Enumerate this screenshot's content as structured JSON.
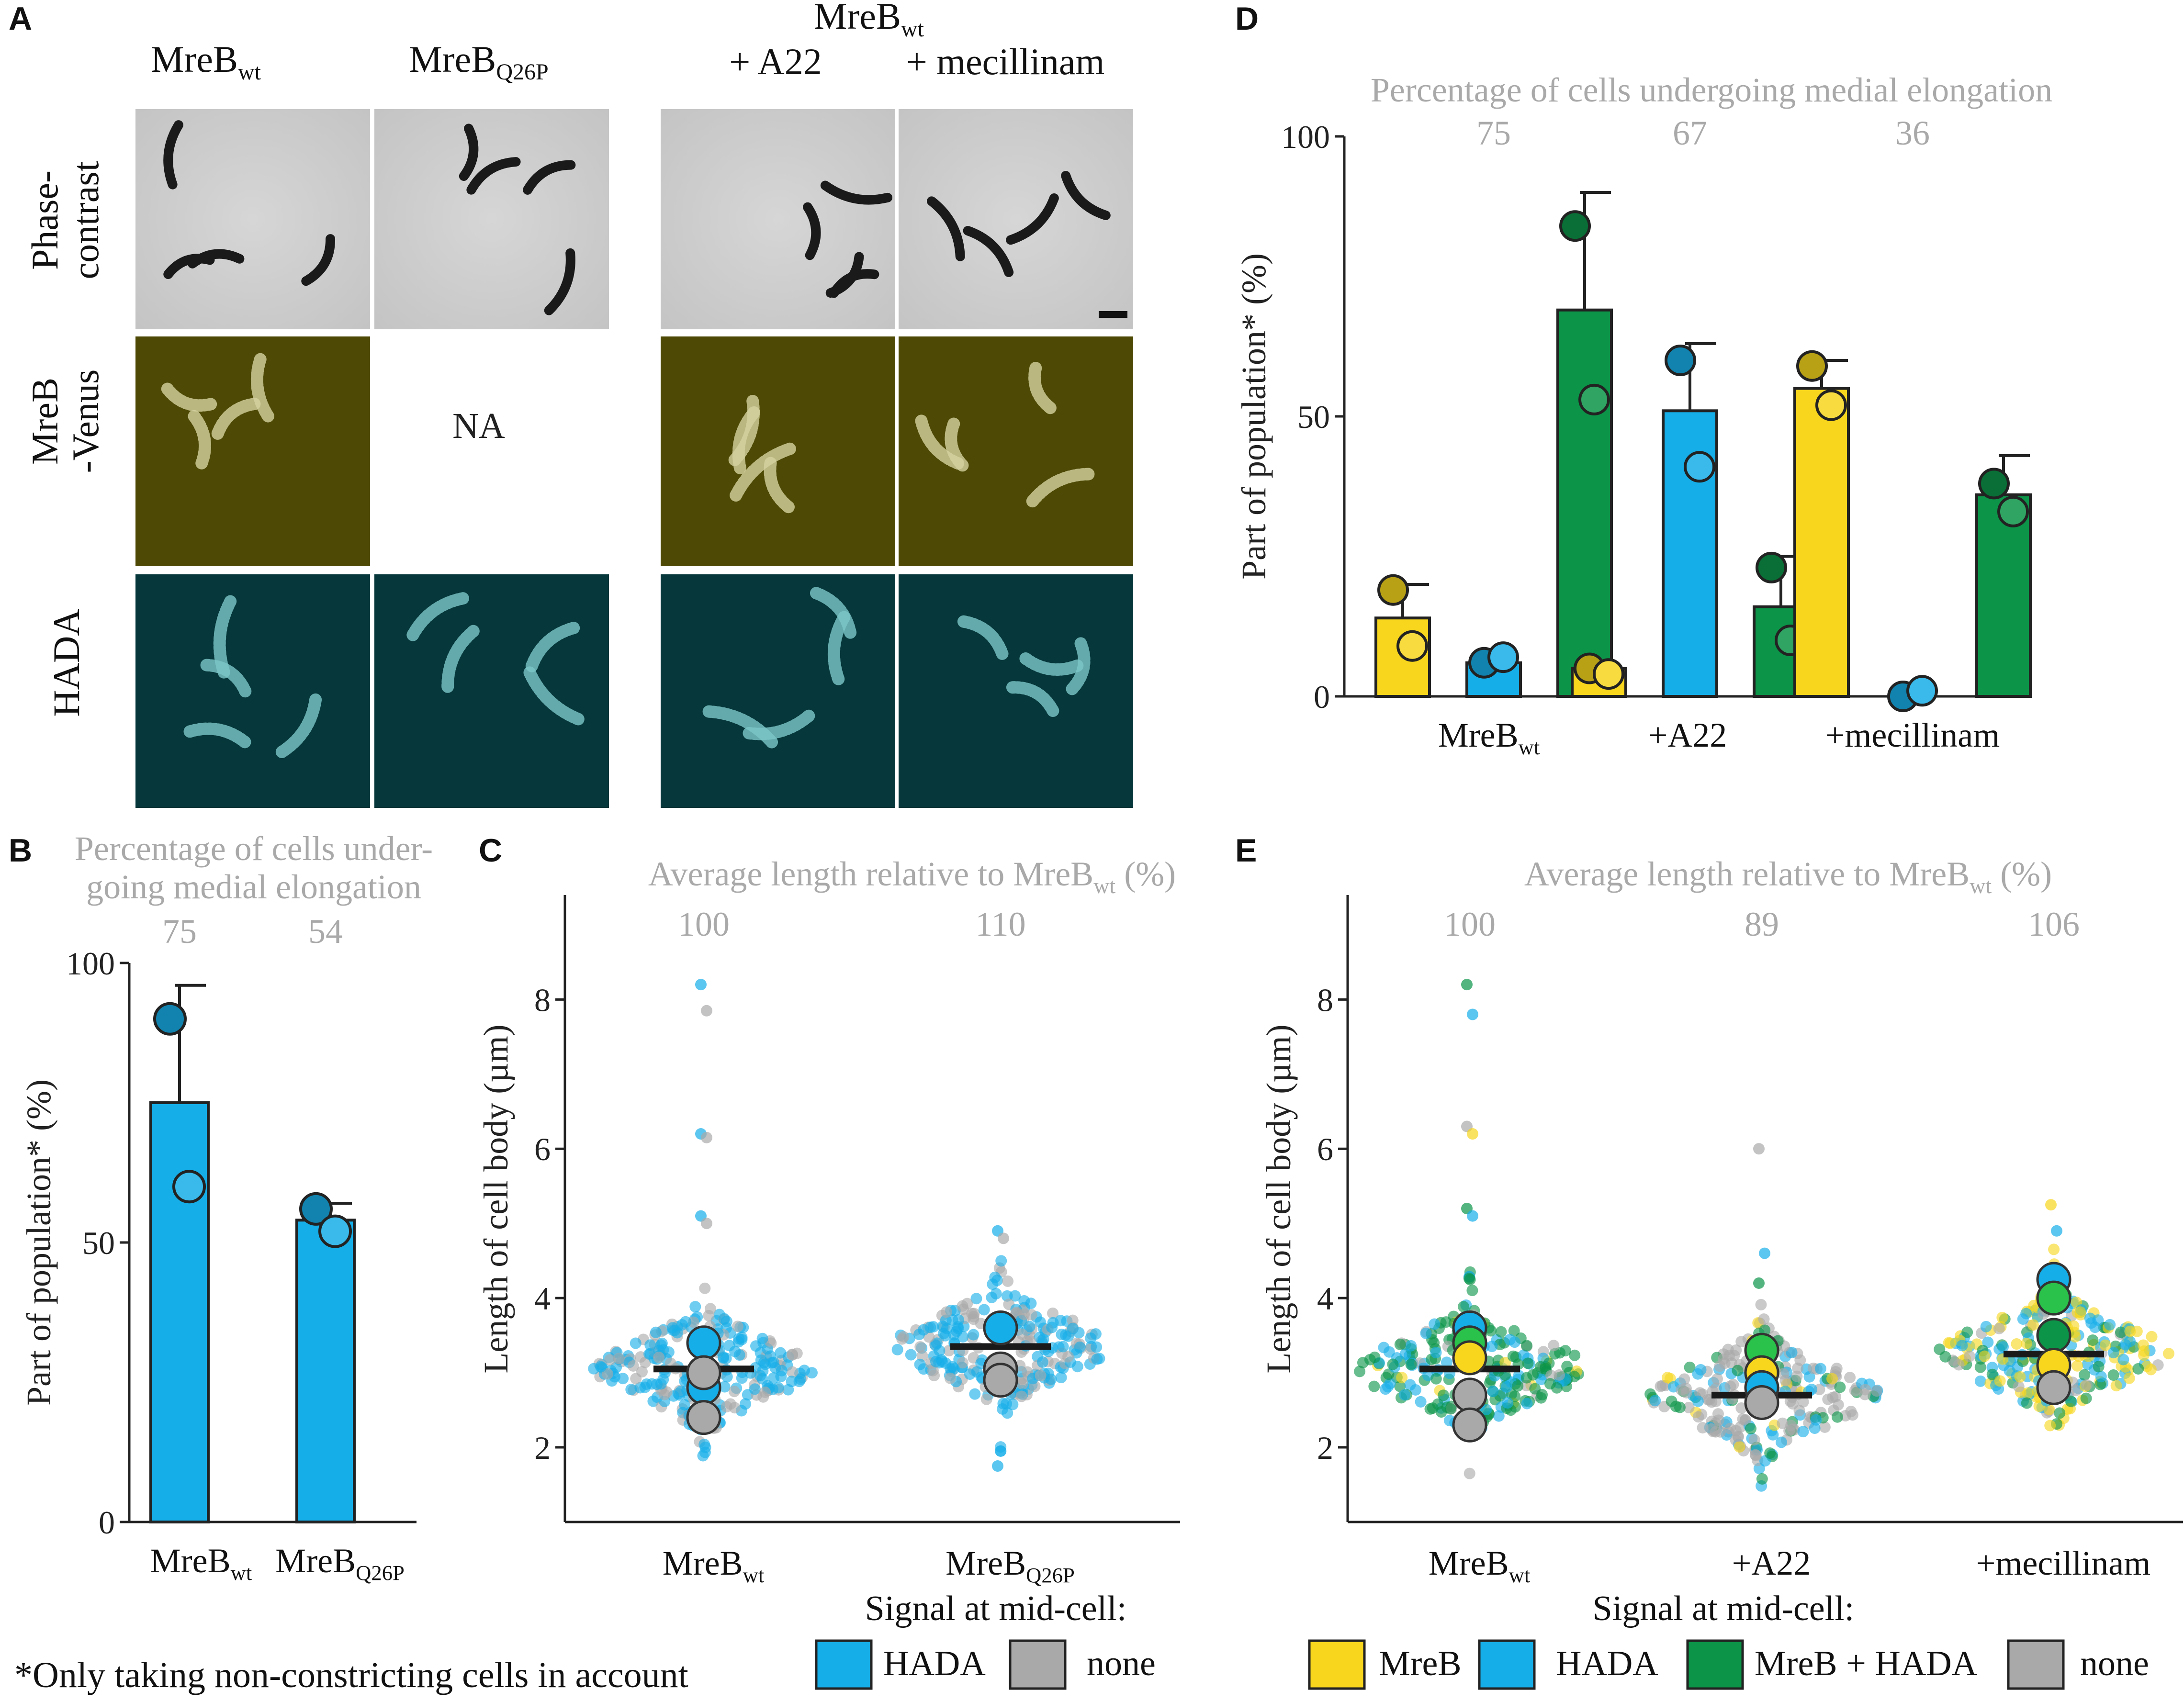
{
  "figure": {
    "panels": {
      "A": {
        "letter": "A",
        "col_labels": [
          {
            "main": "MreB",
            "sub": "wt"
          },
          {
            "main": "MreB",
            "sub": "Q26P"
          }
        ],
        "group_header": {
          "main": "MreB",
          "sub": "wt"
        },
        "treatments": [
          "+ A22",
          "+ mecillinam"
        ],
        "row_labels": [
          {
            "line1": "Phase-",
            "line2": "contrast"
          },
          {
            "line1": "MreB",
            "line2": "-Venus"
          },
          {
            "line1": "HADA",
            "line2": ""
          }
        ],
        "na_text": "NA"
      },
      "B": {
        "letter": "B"
      },
      "C": {
        "letter": "C"
      },
      "D": {
        "letter": "D"
      },
      "E": {
        "letter": "E"
      }
    },
    "footnote": "*Only taking non-constricting cells in account",
    "legends": {
      "C": {
        "title": "Signal at mid-cell:",
        "items": [
          {
            "label": "HADA",
            "color": "#16aee8"
          },
          {
            "label": "none",
            "color": "#a9a9a9"
          }
        ]
      },
      "E": {
        "title": "Signal at mid-cell:",
        "items": [
          {
            "label": "MreB",
            "color": "#f7d61d"
          },
          {
            "label": "HADA",
            "color": "#16aee8"
          },
          {
            "label": "MreB + HADA",
            "color": "#0c9448"
          },
          {
            "label": "none",
            "color": "#a9a9a9"
          }
        ]
      }
    },
    "colors": {
      "mreb": "#f7d61d",
      "hada": "#16aee8",
      "both": "#0c9448",
      "none": "#a9a9a9",
      "mean_bar": "#1a1a1a"
    }
  },
  "chart_data": [
    {
      "id": "B",
      "type": "bar",
      "annotation_title": [
        "Percentage of cells under-",
        "going medial elongation"
      ],
      "annotation_values": [
        "75",
        "54"
      ],
      "categories": [
        {
          "main": "MreB",
          "sub": "wt"
        },
        {
          "main": "MreB",
          "sub": "Q26P"
        }
      ],
      "series": [
        {
          "name": "HADA",
          "color": "#16aee8",
          "values": [
            75,
            54
          ],
          "errors": [
            21,
            3
          ],
          "replicates": [
            [
              90,
              60
            ],
            [
              56,
              52
            ]
          ]
        }
      ],
      "ylabel": "Part of population* (%)",
      "ylim": [
        0,
        100
      ],
      "yticks": [
        0,
        50,
        100
      ]
    },
    {
      "id": "D",
      "type": "bar",
      "annotation_title": [
        "Percentage of cells undergoing medial elongation"
      ],
      "annotation_values": [
        "75",
        "67",
        "36"
      ],
      "categories": [
        {
          "main": "MreB",
          "sub": "wt"
        },
        {
          "main": "+A22",
          "sub": ""
        },
        {
          "main": "+mecillinam",
          "sub": ""
        }
      ],
      "series": [
        {
          "name": "MreB",
          "color": "#f7d61d",
          "values": [
            14,
            5,
            55
          ],
          "errors": [
            6,
            0,
            5
          ],
          "replicates": [
            [
              19,
              9
            ],
            [
              5,
              4
            ],
            [
              59,
              52
            ]
          ]
        },
        {
          "name": "HADA",
          "color": "#16aee8",
          "values": [
            6,
            51,
            0
          ],
          "errors": [
            0,
            12,
            0
          ],
          "replicates": [
            [
              6,
              7
            ],
            [
              60,
              41
            ],
            [
              0,
              1
            ]
          ]
        },
        {
          "name": "MreB + HADA",
          "color": "#0c9448",
          "values": [
            69,
            16,
            36
          ],
          "errors": [
            21,
            9,
            7
          ],
          "replicates": [
            [
              84,
              53
            ],
            [
              23,
              10
            ],
            [
              38,
              33
            ]
          ]
        }
      ],
      "ylabel": "Part of population* (%)",
      "ylim": [
        0,
        100
      ],
      "yticks": [
        0,
        50,
        100
      ]
    },
    {
      "id": "C",
      "type": "scatter",
      "annotation_title": {
        "pre": "Average length relative to MreB",
        "sub": "wt",
        "post": " (%)"
      },
      "annotation_values": [
        "100",
        "110"
      ],
      "categories": [
        {
          "main": "MreB",
          "sub": "wt"
        },
        {
          "main": "MreB",
          "sub": "Q26P"
        }
      ],
      "groups": [
        {
          "median": 3.05,
          "spread_max": 2.0,
          "outliers": [
            8.2,
            7.85,
            6.2,
            6.15,
            5.1,
            5.0
          ],
          "replicate_means": [
            {
              "v": 3.4,
              "c": "#16aee8"
            },
            {
              "v": 2.8,
              "c": "#16aee8"
            },
            {
              "v": 3.0,
              "c": "#a9a9a9"
            },
            {
              "v": 2.4,
              "c": "#a9a9a9"
            }
          ],
          "mix": [
            [
              "#16aee8",
              0.7
            ],
            [
              "#a9a9a9",
              0.3
            ]
          ]
        },
        {
          "median": 3.35,
          "spread_max": 1.6,
          "outliers": [
            4.9,
            4.8,
            1.75
          ],
          "replicate_means": [
            {
              "v": 3.6,
              "c": "#16aee8"
            },
            {
              "v": 3.05,
              "c": "#a9a9a9"
            },
            {
              "v": 2.9,
              "c": "#a9a9a9"
            }
          ],
          "mix": [
            [
              "#16aee8",
              0.6
            ],
            [
              "#a9a9a9",
              0.4
            ]
          ]
        }
      ],
      "ylabel": "Length of cell body (µm)",
      "ylim": [
        1,
        9.4
      ],
      "yticks": [
        2,
        4,
        6,
        8
      ]
    },
    {
      "id": "E",
      "type": "scatter",
      "annotation_title": {
        "pre": "Average length relative to MreB",
        "sub": "wt",
        "post": " (%)"
      },
      "annotation_values": [
        "100",
        "89",
        "106"
      ],
      "categories": [
        {
          "main": "MreB",
          "sub": "wt"
        },
        {
          "main": "+A22",
          "sub": ""
        },
        {
          "main": "+mecillinam",
          "sub": ""
        }
      ],
      "groups": [
        {
          "median": 3.05,
          "spread_max": 2.0,
          "outliers": [
            8.2,
            7.8,
            6.3,
            6.2,
            5.2,
            5.1
          ],
          "replicate_means": [
            {
              "v": 3.6,
              "c": "#16aee8"
            },
            {
              "v": 3.4,
              "c": "#2ac24a"
            },
            {
              "v": 3.2,
              "c": "#f7d61d"
            },
            {
              "v": 2.7,
              "c": "#a9a9a9"
            },
            {
              "v": 2.3,
              "c": "#a9a9a9"
            }
          ],
          "mix": [
            [
              "#0c9448",
              0.55
            ],
            [
              "#16aee8",
              0.3
            ],
            [
              "#a9a9a9",
              0.1
            ],
            [
              "#f7d61d",
              0.05
            ]
          ]
        },
        {
          "median": 2.7,
          "spread_max": 1.6,
          "outliers": [
            6.0,
            4.6,
            4.2
          ],
          "replicate_means": [
            {
              "v": 3.3,
              "c": "#2ac24a"
            },
            {
              "v": 3.0,
              "c": "#f7d61d"
            },
            {
              "v": 2.8,
              "c": "#16aee8"
            },
            {
              "v": 2.6,
              "c": "#a9a9a9"
            }
          ],
          "mix": [
            [
              "#a9a9a9",
              0.6
            ],
            [
              "#16aee8",
              0.2
            ],
            [
              "#0c9448",
              0.15
            ],
            [
              "#f7d61d",
              0.05
            ]
          ]
        },
        {
          "median": 3.25,
          "spread_max": 1.9,
          "outliers": [
            5.25,
            4.9
          ],
          "replicate_means": [
            {
              "v": 4.25,
              "c": "#16aee8"
            },
            {
              "v": 4.0,
              "c": "#2ac24a"
            },
            {
              "v": 3.5,
              "c": "#0c9448"
            },
            {
              "v": 3.1,
              "c": "#f7d61d"
            },
            {
              "v": 2.8,
              "c": "#a9a9a9"
            }
          ],
          "mix": [
            [
              "#f7d61d",
              0.4
            ],
            [
              "#16aee8",
              0.3
            ],
            [
              "#0c9448",
              0.2
            ],
            [
              "#a9a9a9",
              0.1
            ]
          ]
        }
      ],
      "ylabel": "Length of cell body (µm)",
      "ylim": [
        1,
        9.4
      ],
      "yticks": [
        2,
        4,
        6,
        8
      ]
    }
  ]
}
